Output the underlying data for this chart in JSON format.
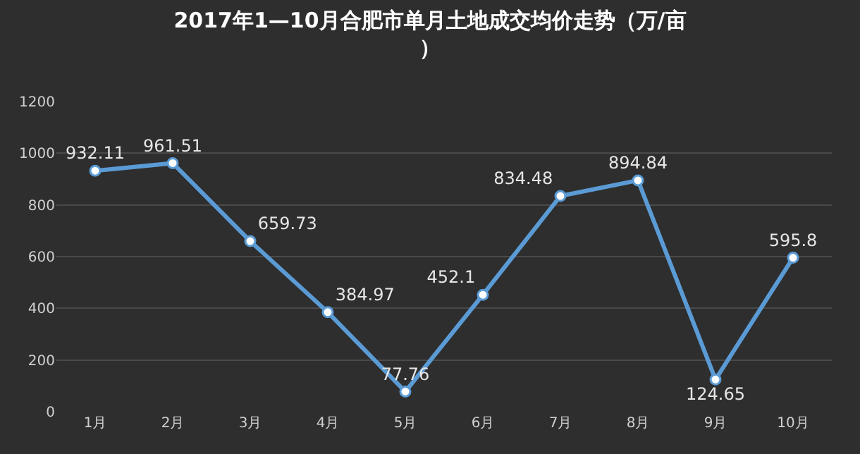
{
  "chart_data": {
    "type": "line",
    "title": "2017年1—10月合肥市单月土地成交均价走势（万/亩）",
    "categories": [
      "1月",
      "2月",
      "3月",
      "4月",
      "5月",
      "6月",
      "7月",
      "8月",
      "9月",
      "10月"
    ],
    "series": [
      {
        "color": "#5b9bd5",
        "values": [
          932.11,
          961.51,
          659.73,
          384.97,
          77.76,
          452.1,
          834.48,
          894.84,
          124.65,
          595.8
        ]
      }
    ],
    "ylim": [
      0,
      1200
    ],
    "yticks": [
      0,
      200,
      400,
      600,
      800,
      1000,
      1200
    ],
    "grid": "y",
    "marker": "circle",
    "line_style": "solid",
    "data_labels": true
  }
}
